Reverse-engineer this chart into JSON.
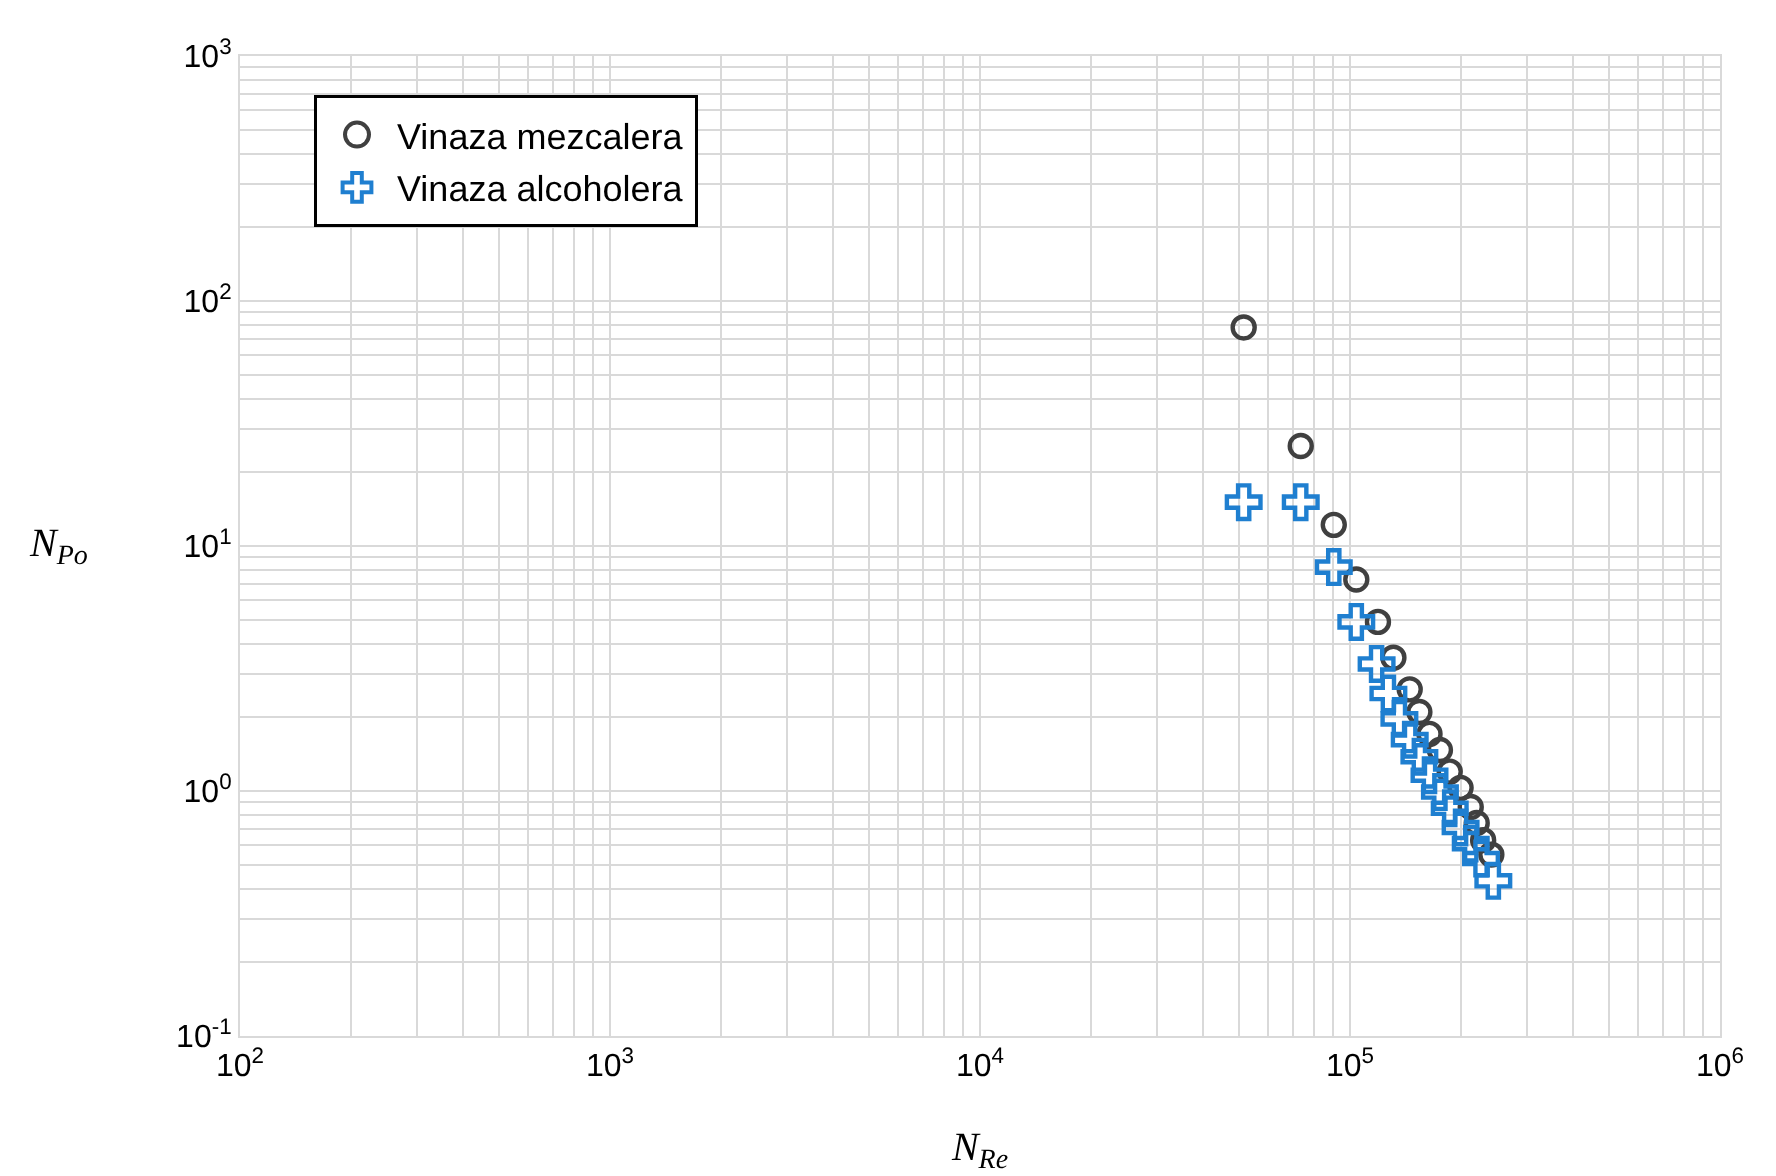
{
  "chart_data": {
    "type": "scatter",
    "xlabel": "N$_{Re}$",
    "ylabel": "N$_{Po}$",
    "log": "xy",
    "grid": true,
    "legend": "top left",
    "xlim": [
      100,
      1000000
    ],
    "ylim": [
      0.1,
      1000
    ],
    "xticks": [
      {
        "value": 100,
        "label": "10$^{2}$"
      },
      {
        "value": 1000,
        "label": "10$^{3}$"
      },
      {
        "value": 10000,
        "label": "10$^{4}$"
      },
      {
        "value": 100000,
        "label": "10$^{5}$"
      },
      {
        "value": 1000000,
        "label": "10$^{6}$"
      }
    ],
    "yticks": [
      {
        "value": 0.1,
        "label": "10$^{-1}$"
      },
      {
        "value": 1,
        "label": "10$^{0}$"
      },
      {
        "value": 10,
        "label": "10$^{1}$"
      },
      {
        "value": 100,
        "label": "10$^{2}$"
      },
      {
        "value": 1000,
        "label": "10$^{3}$"
      }
    ],
    "series": [
      {
        "name": "Vinaza mezcalera",
        "color": "#404040",
        "marker": "circle",
        "x": [
          51600,
          73600,
          90400,
          104000,
          119000,
          131000,
          145000,
          154000,
          164000,
          175000,
          186000,
          199000,
          212000,
          220000,
          229000,
          241000
        ],
        "values": [
          78,
          25.6,
          12.2,
          7.3,
          4.9,
          3.5,
          2.6,
          2.1,
          1.71,
          1.47,
          1.2,
          1.03,
          0.86,
          0.74,
          0.63,
          0.55
        ]
      },
      {
        "name": "Vinaza alcoholera",
        "color": "#1f7fd0",
        "marker": "cross",
        "x": [
          51600,
          73600,
          90400,
          104000,
          118000,
          127000,
          136000,
          145000,
          154000,
          164000,
          175000,
          186000,
          199000,
          212000,
          226000,
          244000
        ],
        "values": [
          15.1,
          15.1,
          8.2,
          4.9,
          3.3,
          2.5,
          1.97,
          1.62,
          1.38,
          1.16,
          0.99,
          0.85,
          0.71,
          0.61,
          0.53,
          0.43
        ]
      }
    ]
  }
}
